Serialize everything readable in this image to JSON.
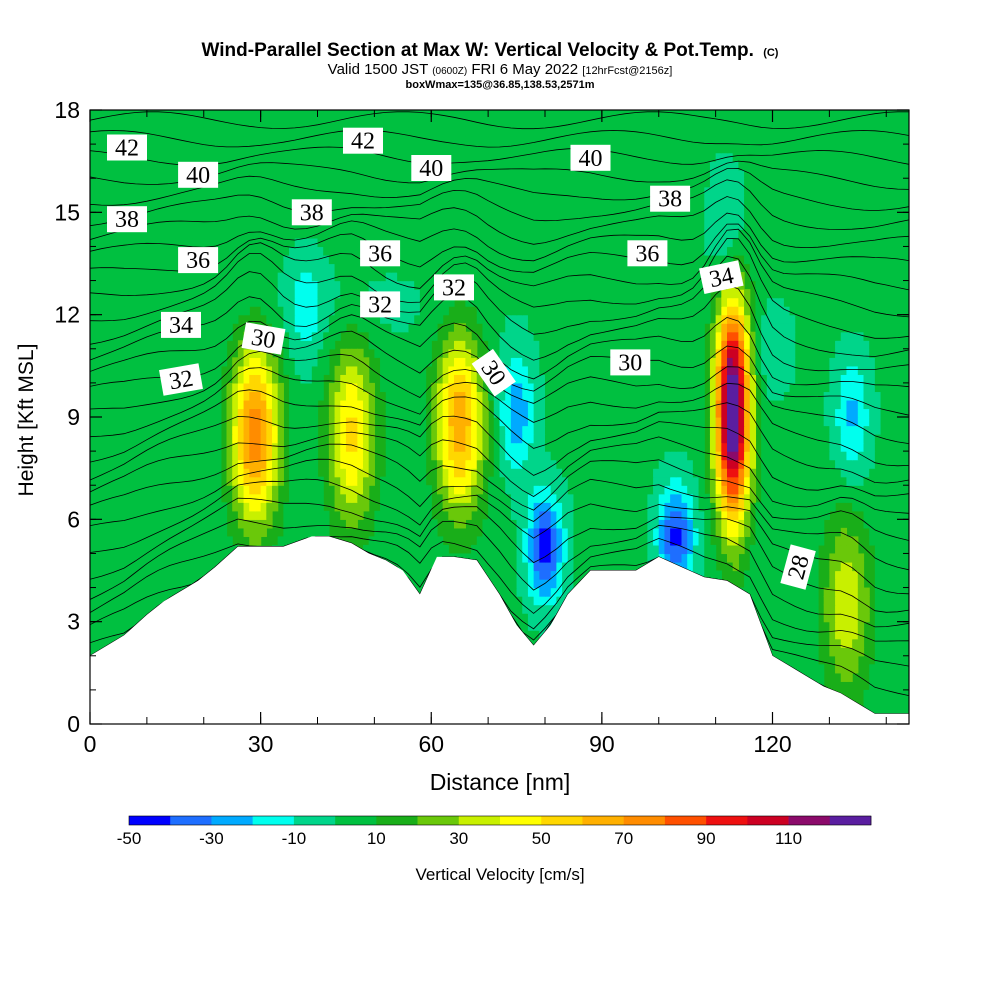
{
  "title": {
    "main": "Wind-Parallel Section at Max W: Vertical Velocity & Pot.Temp.",
    "copyright": "(C)",
    "valid_prefix": "Valid 1500 JST",
    "valid_utc": "(0600Z)",
    "valid_date": "FRI 6 May 2022",
    "forecast": "[12hrFcst@2156z]",
    "boxinfo": "boxWmax=135@36.85,138.53,2571m"
  },
  "chart_data": {
    "type": "heatmap",
    "xlabel": "Distance [nm]",
    "ylabel": "Height [Kft MSL]",
    "xlim": [
      0,
      144
    ],
    "ylim": [
      0,
      18
    ],
    "x_ticks": [
      0,
      30,
      60,
      90,
      120
    ],
    "y_ticks": [
      0,
      3,
      6,
      9,
      12,
      15,
      18
    ],
    "colorbar": {
      "label": "Vertical Velocity [cm/s]",
      "tick_labels": [
        -50,
        -30,
        -10,
        10,
        30,
        50,
        70,
        90,
        110
      ],
      "levels": [
        -50,
        -40,
        -30,
        -20,
        -10,
        0,
        10,
        20,
        30,
        40,
        50,
        60,
        70,
        80,
        90,
        100,
        110,
        120
      ],
      "colors": [
        "#0000ff",
        "#1e6eff",
        "#00aaff",
        "#00ffee",
        "#00d58a",
        "#00c040",
        "#19ae19",
        "#6ac80a",
        "#c8f000",
        "#ffff00",
        "#ffd700",
        "#ffb000",
        "#ff8c00",
        "#ff5000",
        "#ee1010",
        "#cc0022",
        "#8b0a6a",
        "#5a1ea0"
      ]
    },
    "background_w": 3,
    "updraft_cores": [
      {
        "x": 29,
        "y": 8.5,
        "w_max": 75
      },
      {
        "x": 46,
        "y": 8.5,
        "w_max": 50
      },
      {
        "x": 65,
        "y": 8.8,
        "w_max": 65
      },
      {
        "x": 113,
        "y": 9.2,
        "w_max": 135
      },
      {
        "x": 133,
        "y": 3.5,
        "w_max": 35
      }
    ],
    "downdraft_cores": [
      {
        "x": 80,
        "y": 5.2,
        "w_min": -48
      },
      {
        "x": 103,
        "y": 5.5,
        "w_min": -45
      },
      {
        "x": 75,
        "y": 9.2,
        "w_min": -30
      },
      {
        "x": 134,
        "y": 9.0,
        "w_min": -25
      },
      {
        "x": 38,
        "y": 12.0,
        "w_min": -15
      },
      {
        "x": 112,
        "y": 14.5,
        "w_min": -18
      }
    ],
    "terrain": {
      "x": [
        0,
        3,
        6,
        10,
        13,
        16,
        19,
        22,
        26,
        30,
        34,
        39,
        42,
        46,
        49,
        52,
        55,
        58,
        61,
        64,
        68,
        72,
        75,
        78,
        81,
        84,
        88,
        92,
        96,
        100,
        104,
        108,
        112,
        116,
        120,
        123,
        126,
        129,
        132,
        135,
        138,
        141,
        144
      ],
      "y": [
        2.0,
        2.3,
        2.6,
        3.2,
        3.6,
        3.9,
        4.2,
        4.6,
        5.2,
        5.2,
        5.2,
        5.5,
        5.5,
        5.3,
        5.0,
        4.8,
        4.5,
        3.8,
        4.9,
        4.9,
        4.8,
        3.8,
        2.9,
        2.3,
        2.9,
        3.8,
        4.5,
        4.5,
        4.5,
        4.9,
        4.6,
        4.3,
        4.2,
        3.8,
        2.0,
        1.7,
        1.4,
        1.1,
        0.9,
        0.6,
        0.3,
        0.3,
        0.3
      ]
    },
    "theta_contour_labels": [
      {
        "text": "42",
        "x": 6.5,
        "y": 16.9,
        "angle": 0
      },
      {
        "text": "40",
        "x": 19,
        "y": 16.1,
        "angle": 0
      },
      {
        "text": "38",
        "x": 6.5,
        "y": 14.8,
        "angle": 0
      },
      {
        "text": "36",
        "x": 19,
        "y": 13.6,
        "angle": 0
      },
      {
        "text": "34",
        "x": 16,
        "y": 11.7,
        "angle": 0
      },
      {
        "text": "32",
        "x": 16,
        "y": 10.1,
        "angle": -10
      },
      {
        "text": "30",
        "x": 30.5,
        "y": 11.3,
        "angle": 10
      },
      {
        "text": "38",
        "x": 39,
        "y": 15.0,
        "angle": 0
      },
      {
        "text": "42",
        "x": 48,
        "y": 17.1,
        "angle": 0
      },
      {
        "text": "40",
        "x": 60,
        "y": 16.3,
        "angle": 0
      },
      {
        "text": "36",
        "x": 51,
        "y": 13.8,
        "angle": 0
      },
      {
        "text": "32",
        "x": 51,
        "y": 12.3,
        "angle": 0
      },
      {
        "text": "32",
        "x": 64,
        "y": 12.8,
        "angle": 0
      },
      {
        "text": "30",
        "x": 71,
        "y": 10.3,
        "angle": 55
      },
      {
        "text": "40",
        "x": 88,
        "y": 16.6,
        "angle": 0
      },
      {
        "text": "38",
        "x": 102,
        "y": 15.4,
        "angle": 0
      },
      {
        "text": "36",
        "x": 98,
        "y": 13.8,
        "angle": 0
      },
      {
        "text": "30",
        "x": 95,
        "y": 10.6,
        "angle": 0
      },
      {
        "text": "34",
        "x": 111,
        "y": 13.1,
        "angle": -12
      },
      {
        "text": "28",
        "x": 124.5,
        "y": 4.6,
        "angle": -75
      }
    ]
  }
}
